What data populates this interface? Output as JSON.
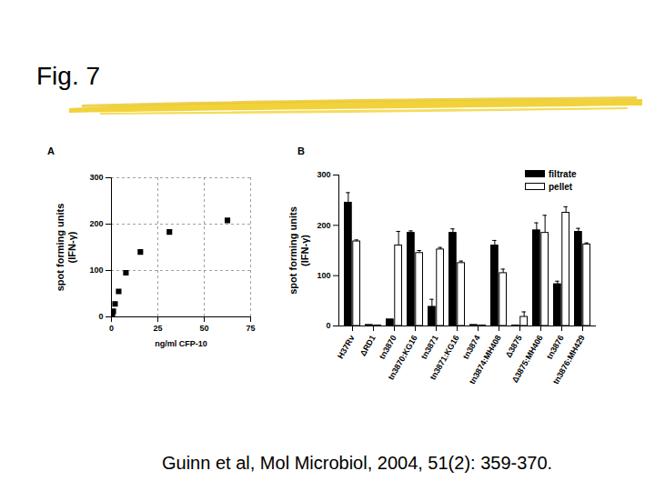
{
  "slide": {
    "title": "Fig. 7",
    "citation": "Guinn et al, Mol Microbiol, 2004, 51(2): 359-370."
  },
  "chart_data": [
    {
      "type": "scatter",
      "annotations": [
        "A"
      ],
      "x_label": "ng/ml CFP-10",
      "y_label": "spot forming units\n(IFN-γ)",
      "x": [
        0.49,
        0.98,
        1.95,
        3.9,
        7.8,
        15.6,
        31.25,
        62.5
      ],
      "values": [
        5,
        12,
        28,
        55,
        95,
        140,
        183,
        208
      ],
      "xlim": [
        0,
        75
      ],
      "xticks": [
        0,
        25,
        50,
        75
      ],
      "ylim": [
        0,
        300
      ],
      "yticks": [
        0,
        100,
        200,
        300
      ],
      "grid": true,
      "marker": "square",
      "color": "#000000"
    },
    {
      "type": "bar",
      "annotations": [
        "B"
      ],
      "y_label": "spot forming units\n(IFN-γ)",
      "categories": [
        "H37Rv",
        "ΔRD1",
        "tn3870",
        "tn3870:KG16",
        "tn3871",
        "tn3871:KG16",
        "tn3874",
        "tn3874:MH408",
        "Δ3875",
        "Δ3875:MH406",
        "tn3876",
        "tn3876:MH429"
      ],
      "series": [
        {
          "name": "filtrate",
          "color": "#000000",
          "values": [
            245,
            2,
            13,
            185,
            38,
            185,
            2,
            160,
            1,
            190,
            83,
            187
          ],
          "errors": [
            20,
            null,
            null,
            4,
            15,
            8,
            null,
            10,
            null,
            15,
            6,
            7
          ]
        },
        {
          "name": "pellet",
          "color": "#ffffff",
          "values": [
            168,
            1,
            160,
            145,
            152,
            125,
            1,
            105,
            18,
            185,
            225,
            162
          ],
          "errors": [
            3,
            null,
            28,
            5,
            4,
            4,
            null,
            8,
            10,
            35,
            12,
            3
          ]
        }
      ],
      "ylim": [
        0,
        300
      ],
      "yticks": [
        0,
        100,
        200,
        300
      ],
      "legend": "top-right"
    }
  ]
}
